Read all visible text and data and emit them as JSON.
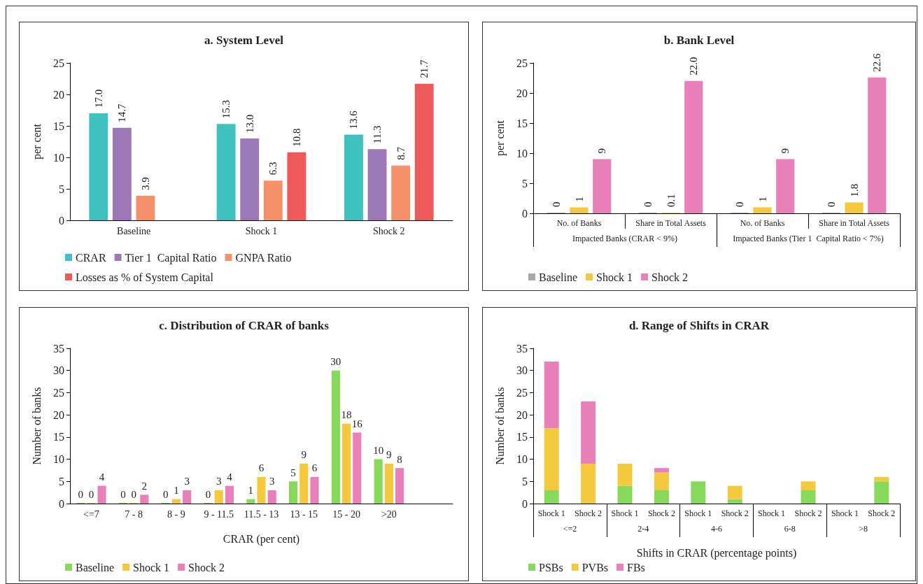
{
  "chart_data": [
    {
      "type": "bar",
      "title": "a. System Level",
      "ylabel": "per cent",
      "categories": [
        "Baseline",
        "Shock 1",
        "Shock 2"
      ],
      "ylim": [
        0,
        25
      ],
      "yticks": [
        0,
        5,
        10,
        15,
        20,
        25
      ],
      "grid": false,
      "legend": "bottom",
      "series": [
        {
          "name": "CRAR",
          "color": "#3fc1c0",
          "values": [
            17.0,
            15.3,
            13.6
          ],
          "value_labels": [
            "17.0",
            "15.3",
            "13.6"
          ]
        },
        {
          "name": "Tier 1  Capital Ratio",
          "color": "#9b77b8",
          "values": [
            14.7,
            13.0,
            11.3
          ],
          "value_labels": [
            "14.7",
            "13.0",
            "11.3"
          ]
        },
        {
          "name": "GNPA Ratio",
          "color": "#f4916b",
          "values": [
            3.9,
            6.3,
            8.7
          ],
          "value_labels": [
            "3.9",
            "6.3",
            "8.7"
          ]
        },
        {
          "name": "Losses as % of System Capital",
          "color": "#ee5a5a",
          "values": [
            null,
            10.8,
            21.7
          ],
          "value_labels": [
            null,
            "10.8",
            "21.7"
          ]
        }
      ]
    },
    {
      "type": "bar",
      "title": "b. Bank Level",
      "ylabel": "per cent",
      "categories": [
        "No. of Banks",
        "Share in Total Assets",
        "No. of Banks",
        "Share in Total Assets"
      ],
      "annotations": [
        "Impacted Banks (CRAR < 9%)",
        "Impacted Banks (Tier 1  Capital Ratio < 7%)"
      ],
      "ylim": [
        0,
        25
      ],
      "yticks": [
        0,
        5,
        10,
        15,
        20,
        25
      ],
      "grid": false,
      "legend": "bottom",
      "series": [
        {
          "name": "Baseline",
          "color": "#a6a6a6",
          "values": [
            0,
            0,
            0,
            0
          ],
          "value_labels": [
            "0",
            "0",
            "0",
            "0"
          ]
        },
        {
          "name": "Shock 1",
          "color": "#f5c93d",
          "values": [
            1,
            0.1,
            1,
            1.8
          ],
          "value_labels": [
            "1",
            "0.1",
            "1",
            "1.8"
          ]
        },
        {
          "name": "Shock 2",
          "color": "#ea80b9",
          "values": [
            9,
            22.0,
            9,
            22.6
          ],
          "value_labels": [
            "9",
            "22.0",
            "9",
            "22.6"
          ]
        }
      ]
    },
    {
      "type": "bar",
      "title": "c. Distribution of CRAR of banks",
      "xlabel": "CRAR (per cent)",
      "ylabel": "Number of banks",
      "categories": [
        "<=7",
        "7 - 8",
        "8 - 9",
        "9 - 11.5",
        "11.5 - 13",
        "13 - 15",
        "15 - 20",
        ">20",
        null
      ],
      "ylim": [
        0,
        35
      ],
      "yticks": [
        0,
        5,
        10,
        15,
        20,
        25,
        30,
        35
      ],
      "grid": false,
      "legend": "bottom",
      "data_labels": true,
      "series": [
        {
          "name": "Baseline",
          "color": "#86d95a",
          "values": [
            0,
            0,
            0,
            0,
            1,
            5,
            30,
            10,
            null
          ]
        },
        {
          "name": "Shock 1",
          "color": "#f5c93d",
          "values": [
            0,
            0,
            1,
            3,
            6,
            9,
            18,
            9,
            null
          ]
        },
        {
          "name": "Shock 2",
          "color": "#ea80b9",
          "values": [
            4,
            2,
            3,
            4,
            3,
            6,
            16,
            8,
            null
          ]
        }
      ]
    },
    {
      "type": "bar",
      "title": "d. Range of Shifts in CRAR",
      "xlabel": "Shifts in CRAR (percentage points)",
      "ylabel": "Number of banks",
      "categories": [
        "Shock 1",
        "Shock 2",
        "Shock 1",
        "Shock 2",
        "Shock 1",
        "Shock 2",
        "Shock 1",
        "Shock 2",
        "Shock 1",
        "Shock 2"
      ],
      "annotations": [
        "<=2",
        "2-4",
        "4-6",
        "6-8",
        ">8"
      ],
      "ylim": [
        0,
        35
      ],
      "yticks": [
        0,
        5,
        10,
        15,
        20,
        25,
        30,
        35
      ],
      "grid": false,
      "legend": "bottom",
      "stacked": true,
      "series": [
        {
          "name": "PSBs",
          "color": "#86d95a",
          "values": [
            3,
            0,
            4,
            3,
            5,
            1,
            0,
            3,
            0,
            5
          ]
        },
        {
          "name": "PVBs",
          "color": "#f5c93d",
          "values": [
            14,
            9,
            5,
            4,
            0,
            3,
            0,
            2,
            0,
            1
          ]
        },
        {
          "name": "FBs",
          "color": "#ea80b9",
          "values": [
            15,
            14,
            0,
            1,
            0,
            0,
            0,
            0,
            0,
            0
          ]
        }
      ]
    }
  ]
}
